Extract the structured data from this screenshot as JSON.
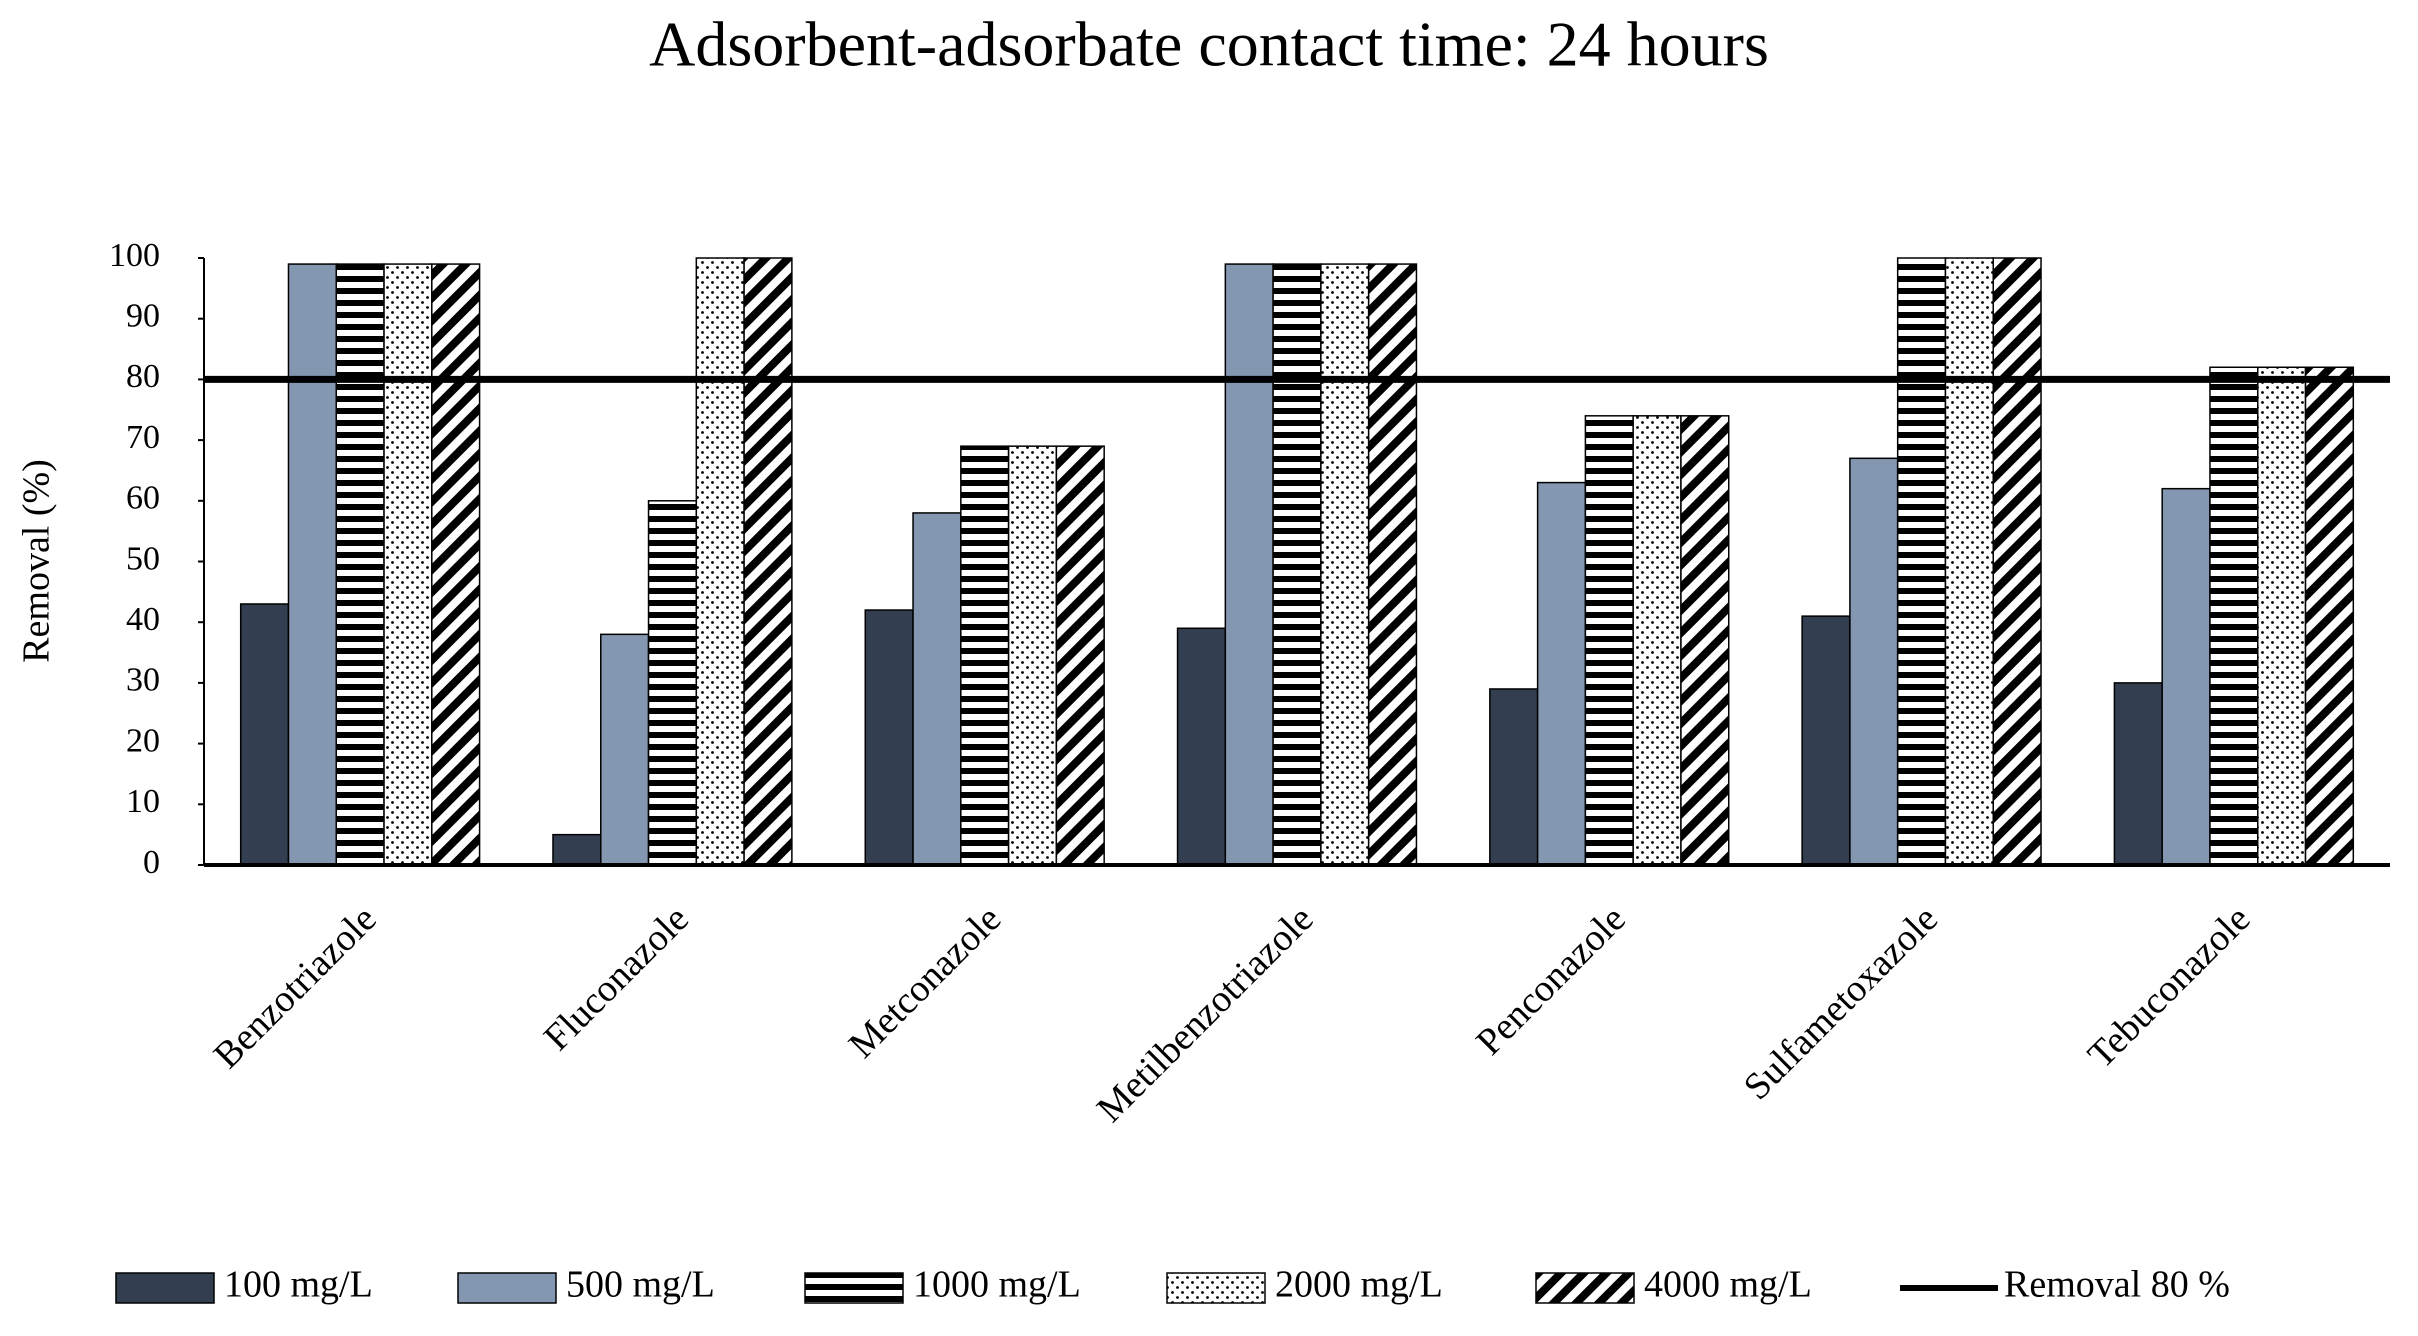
{
  "chart_data": {
    "type": "bar",
    "title": "Adsorbent-adsorbate contact time: 24 hours",
    "y_label": "Removal (%)",
    "categories": [
      "Benzotriazole",
      "Fluconazole",
      "Metconazole",
      "Metilbenzotriazole",
      "Penconazole",
      "Sulfametoxazole",
      "Tebuconazole"
    ],
    "series": [
      {
        "name": "100 mg/L",
        "color": "#333f50",
        "pattern": "solid",
        "values": [
          43,
          5,
          42,
          39,
          29,
          41,
          30
        ]
      },
      {
        "name": "500 mg/L",
        "color": "#8497b0",
        "pattern": "solid",
        "values": [
          99,
          38,
          58,
          99,
          63,
          67,
          62
        ]
      },
      {
        "name": "1000 mg/L",
        "color": "#000000",
        "pattern": "horizontal",
        "values": [
          99,
          60,
          69,
          99,
          74,
          100,
          82
        ]
      },
      {
        "name": "2000 mg/L",
        "color": "#000000",
        "pattern": "dots",
        "values": [
          99,
          100,
          69,
          99,
          74,
          100,
          82
        ]
      },
      {
        "name": "4000 mg/L",
        "color": "#000000",
        "pattern": "diagonal",
        "values": [
          99,
          100,
          69,
          99,
          74,
          100,
          82
        ]
      }
    ],
    "reference_line": {
      "name": "Removal 80 %",
      "value": 80,
      "color": "#000000"
    },
    "ylim": [
      0,
      100
    ],
    "yticks": [
      0,
      10,
      20,
      30,
      40,
      50,
      60,
      70,
      80,
      90,
      100
    ],
    "legend": "bottom"
  }
}
